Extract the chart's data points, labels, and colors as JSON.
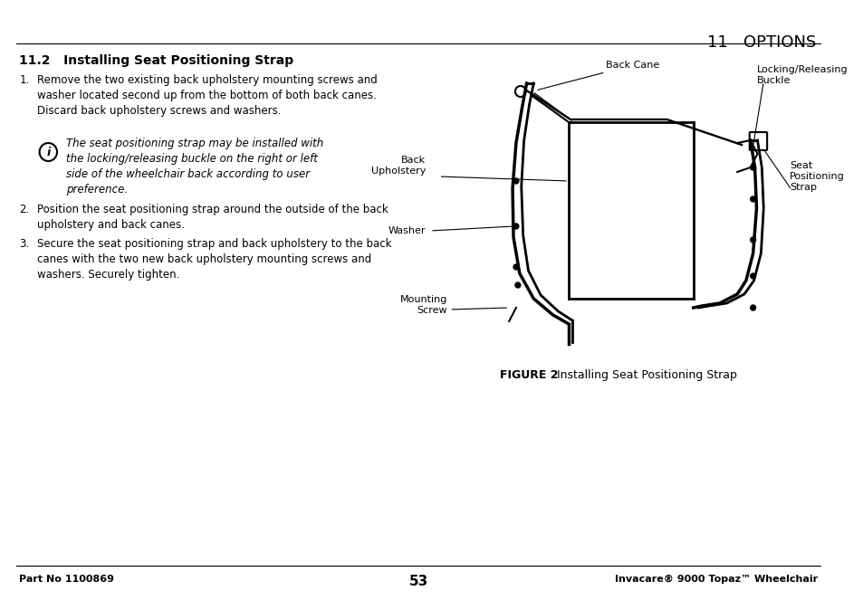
{
  "bg_color": "#ffffff",
  "page_width": 9.54,
  "page_height": 6.74,
  "header_right": "11   OPTIONS",
  "section_title": "11.2   Installing Seat Positioning Strap",
  "step1_num": "1.",
  "step1_text": "Remove the two existing back upholstery mounting screws and\nwasher located second up from the bottom of both back canes.\nDiscard back upholstery screws and washers.",
  "note_text": "The seat positioning strap may be installed with\nthe locking/releasing buckle on the right or left\nside of the wheelchair back according to user\npreference.",
  "step2_num": "2.",
  "step2_text": "Position the seat positioning strap around the outside of the back\nupholstery and back canes.",
  "step3_num": "3.",
  "step3_text": "Secure the seat positioning strap and back upholstery to the back\ncanes with the two new back upholstery mounting screws and\nwashers. Securely tighten.",
  "figure_label": "FIGURE 2",
  "figure_caption": "   Installing Seat Positioning Strap",
  "footer_left": "Part No 1100869",
  "footer_center": "53",
  "footer_right": "Invacare® 9000 Topaz™ Wheelchair",
  "label_back_cane": "Back Cane",
  "label_locking": "Locking/Releasing\nBuckle",
  "label_back_upholstery": "Back\nUpholstery",
  "label_seat_positioning": "Seat\nPositioning\nStrap",
  "label_washer": "Washer",
  "label_mounting_screw": "Mounting\nScrew"
}
